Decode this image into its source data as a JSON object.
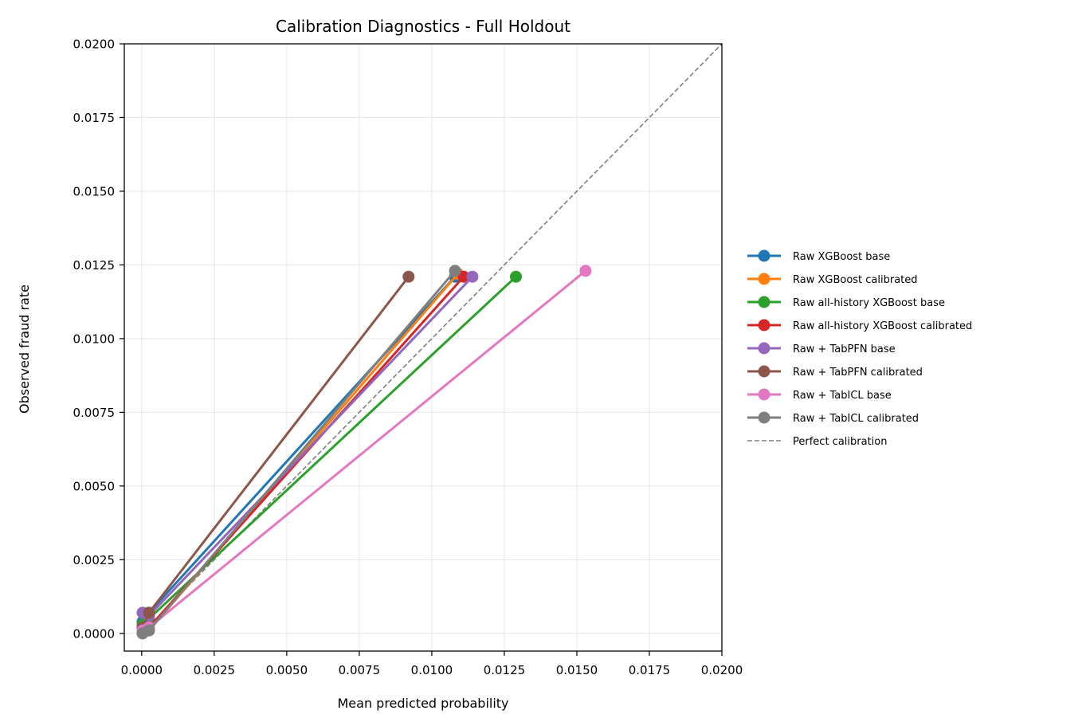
{
  "chart_data": {
    "type": "line",
    "title": "Calibration Diagnostics - Full Holdout",
    "xlabel": "Mean predicted probability",
    "ylabel": "Observed fraud rate",
    "xlim": [
      -0.0006,
      0.02
    ],
    "ylim": [
      -0.0006,
      0.02
    ],
    "xticks": [
      "0.0000",
      "0.0025",
      "0.0050",
      "0.0075",
      "0.0100",
      "0.0125",
      "0.0150",
      "0.0175",
      "0.0200"
    ],
    "yticks": [
      "0.0000",
      "0.0025",
      "0.0050",
      "0.0075",
      "0.0100",
      "0.0125",
      "0.0150",
      "0.0175",
      "0.0200"
    ],
    "grid": true,
    "legend_position": "outside right",
    "series": [
      {
        "name": "Raw XGBoost base",
        "color": "#1f77b4",
        "x": [
          3e-05,
          0.00025,
          0.0108
        ],
        "y": [
          0.0004,
          0.0007,
          0.0121
        ]
      },
      {
        "name": "Raw XGBoost calibrated",
        "color": "#ff7f0e",
        "x": [
          3e-05,
          0.00025,
          0.0109
        ],
        "y": [
          0.0,
          0.0001,
          0.0122
        ]
      },
      {
        "name": "Raw all-history XGBoost base",
        "color": "#2ca02c",
        "x": [
          3e-05,
          0.00025,
          0.0129
        ],
        "y": [
          0.0003,
          0.0005,
          0.0121
        ]
      },
      {
        "name": "Raw all-history XGBoost calibrated",
        "color": "#d62728",
        "x": [
          3e-05,
          0.00025,
          0.0111
        ],
        "y": [
          0.0001,
          0.0002,
          0.0121
        ]
      },
      {
        "name": "Raw + TabPFN base",
        "color": "#9467bd",
        "x": [
          3e-05,
          0.00025,
          0.0114
        ],
        "y": [
          0.0007,
          0.0006,
          0.0121
        ]
      },
      {
        "name": "Raw + TabPFN calibrated",
        "color": "#8c564b",
        "x": [
          3e-05,
          0.00025,
          0.0092
        ],
        "y": [
          0.0002,
          0.0007,
          0.0121
        ]
      },
      {
        "name": "Raw + TabICL base",
        "color": "#e377c2",
        "x": [
          3e-05,
          0.00025,
          0.0153
        ],
        "y": [
          0.0001,
          0.0002,
          0.0123
        ]
      },
      {
        "name": "Raw + TabICL calibrated",
        "color": "#7f7f7f",
        "x": [
          3e-05,
          0.00025,
          0.0108
        ],
        "y": [
          0.0,
          0.0001,
          0.0123
        ]
      }
    ],
    "reference_line": {
      "name": "Perfect calibration",
      "color": "#7f7f7f",
      "style": "dashed",
      "x": [
        0,
        0.02
      ],
      "y": [
        0,
        0.02
      ]
    }
  }
}
